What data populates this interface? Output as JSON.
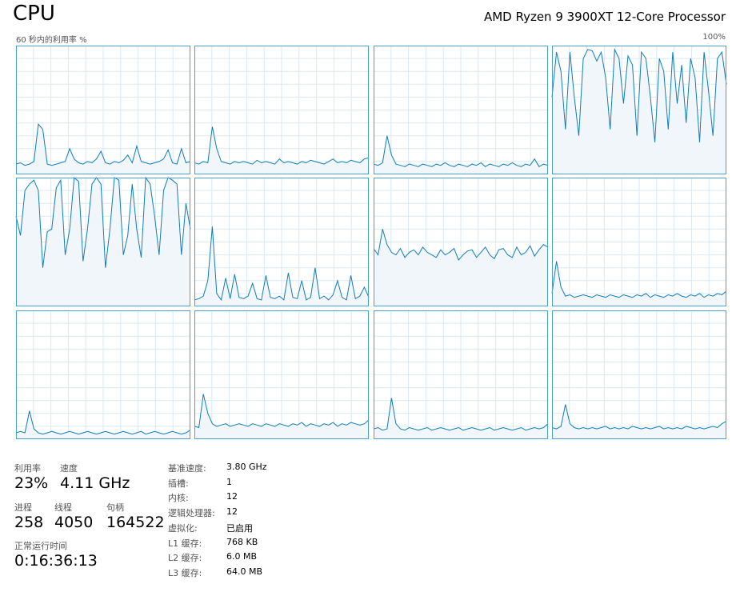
{
  "header": {
    "title": "CPU",
    "processor": "AMD Ryzen 9 3900XT 12-Core Processor",
    "graph_label": "60 秒内的利用率 %",
    "graph_max": "100%"
  },
  "chart_data": {
    "type": "line",
    "ylim": [
      0,
      100
    ],
    "grid": true,
    "color": "#117dbb",
    "fill": "#f1f6fa",
    "series": [
      {
        "values": [
          8,
          9,
          7,
          8,
          10,
          39,
          35,
          8,
          7,
          8,
          9,
          10,
          20,
          12,
          9,
          8,
          10,
          9,
          12,
          18,
          9,
          8,
          10,
          9,
          11,
          15,
          9,
          22,
          10,
          9,
          8,
          9,
          10,
          12,
          19,
          9,
          8,
          20,
          9,
          10
        ]
      },
      {
        "values": [
          9,
          8,
          10,
          9,
          37,
          20,
          10,
          9,
          8,
          10,
          9,
          10,
          9,
          8,
          11,
          9,
          10,
          9,
          8,
          12,
          9,
          10,
          9,
          8,
          10,
          9,
          11,
          10,
          9,
          8,
          10,
          12,
          9,
          10,
          9,
          11,
          10,
          9,
          12,
          13
        ]
      },
      {
        "values": [
          8,
          7,
          9,
          30,
          15,
          8,
          7,
          6,
          8,
          7,
          6,
          8,
          7,
          6,
          8,
          7,
          9,
          7,
          6,
          8,
          7,
          6,
          8,
          7,
          9,
          6,
          8,
          7,
          6,
          8,
          7,
          9,
          7,
          6,
          8,
          7,
          12,
          6,
          8,
          7
        ]
      },
      {
        "values": [
          60,
          95,
          80,
          35,
          95,
          60,
          30,
          90,
          97,
          96,
          88,
          95,
          75,
          35,
          97,
          90,
          55,
          92,
          85,
          30,
          95,
          90,
          60,
          25,
          90,
          80,
          35,
          95,
          55,
          85,
          40,
          90,
          75,
          25,
          95,
          65,
          30,
          90,
          95,
          70
        ]
      },
      {
        "values": [
          70,
          55,
          90,
          95,
          98,
          90,
          30,
          58,
          60,
          92,
          98,
          40,
          60,
          100,
          97,
          35,
          60,
          95,
          100,
          95,
          30,
          60,
          100,
          98,
          40,
          55,
          95,
          60,
          38,
          100,
          95,
          70,
          40,
          90,
          100,
          98,
          95,
          40,
          80,
          60
        ]
      },
      {
        "values": [
          5,
          6,
          8,
          20,
          62,
          10,
          5,
          22,
          6,
          25,
          7,
          6,
          8,
          18,
          6,
          5,
          24,
          7,
          6,
          8,
          5,
          26,
          7,
          6,
          20,
          5,
          7,
          30,
          6,
          8,
          5,
          9,
          20,
          7,
          5,
          24,
          6,
          8,
          15,
          7
        ]
      },
      {
        "values": [
          45,
          40,
          60,
          48,
          42,
          40,
          45,
          38,
          42,
          44,
          40,
          46,
          42,
          40,
          38,
          44,
          40,
          42,
          45,
          36,
          40,
          43,
          44,
          38,
          42,
          46,
          40,
          37,
          44,
          45,
          40,
          38,
          46,
          40,
          42,
          47,
          39,
          44,
          48,
          46
        ]
      },
      {
        "values": [
          10,
          35,
          15,
          8,
          9,
          7,
          8,
          9,
          8,
          7,
          9,
          8,
          7,
          9,
          8,
          7,
          9,
          8,
          7,
          9,
          8,
          10,
          7,
          9,
          8,
          7,
          9,
          8,
          10,
          8,
          7,
          9,
          8,
          10,
          7,
          9,
          8,
          10,
          9,
          12
        ]
      },
      {
        "values": [
          5,
          6,
          5,
          22,
          8,
          5,
          4,
          5,
          6,
          5,
          4,
          5,
          6,
          5,
          4,
          5,
          6,
          5,
          4,
          5,
          6,
          5,
          4,
          5,
          6,
          5,
          4,
          5,
          6,
          4,
          5,
          6,
          5,
          4,
          5,
          6,
          5,
          4,
          5,
          7
        ]
      },
      {
        "values": [
          10,
          9,
          35,
          20,
          12,
          10,
          11,
          12,
          10,
          11,
          12,
          11,
          10,
          12,
          11,
          10,
          12,
          11,
          10,
          12,
          11,
          10,
          12,
          11,
          13,
          10,
          12,
          11,
          10,
          12,
          11,
          13,
          10,
          12,
          11,
          13,
          12,
          11,
          12,
          15
        ]
      },
      {
        "values": [
          8,
          9,
          7,
          8,
          32,
          12,
          8,
          7,
          9,
          8,
          7,
          8,
          9,
          7,
          8,
          9,
          8,
          7,
          8,
          9,
          7,
          8,
          9,
          8,
          7,
          8,
          9,
          7,
          8,
          9,
          8,
          7,
          8,
          9,
          7,
          8,
          9,
          8,
          9,
          12
        ]
      },
      {
        "values": [
          9,
          8,
          10,
          27,
          12,
          9,
          8,
          9,
          8,
          9,
          8,
          9,
          10,
          8,
          9,
          8,
          9,
          8,
          10,
          9,
          8,
          9,
          8,
          9,
          10,
          8,
          9,
          8,
          9,
          8,
          10,
          9,
          8,
          9,
          8,
          9,
          10,
          9,
          12,
          14
        ]
      }
    ]
  },
  "stats": [
    {
      "label": "利用率",
      "value": "23%"
    },
    {
      "label": "速度",
      "value": "4.11 GHz"
    },
    {
      "label": "进程",
      "value": "258"
    },
    {
      "label": "线程",
      "value": "4050"
    },
    {
      "label": "句柄",
      "value": "164522"
    },
    {
      "label": "正常运行时间",
      "value": "0:16:36:13"
    }
  ],
  "specs": [
    {
      "label": "基准速度:",
      "value": "3.80 GHz"
    },
    {
      "label": "插槽:",
      "value": "1"
    },
    {
      "label": "内核:",
      "value": "12"
    },
    {
      "label": "逻辑处理器:",
      "value": "12"
    },
    {
      "label": "虚拟化:",
      "value": "已启用"
    },
    {
      "label": "L1 缓存:",
      "value": "768 KB"
    },
    {
      "label": "L2 缓存:",
      "value": "6.0 MB"
    },
    {
      "label": "L3 缓存:",
      "value": "64.0 MB"
    }
  ]
}
